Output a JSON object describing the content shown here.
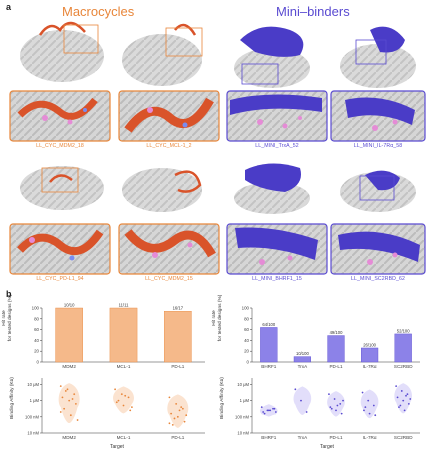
{
  "panel_a": {
    "letter": "a"
  },
  "panel_b": {
    "letter": "b"
  },
  "headers": {
    "macrocycles": "Macrocycles",
    "mini_binders": "Mini–binders"
  },
  "colors": {
    "macrocycle": "#e8863a",
    "mini_binder": "#5a4bd1",
    "helix_orange": "#d9532a",
    "helix_purple": "#4a3cc7",
    "ligand_pink": "#e58bd6"
  },
  "structures": [
    {
      "label": "LL_CYC_MDM2_18"
    },
    {
      "label": "LL_CYC_MCL-1_2"
    },
    {
      "label": "LL_MINI_TrxA_52"
    },
    {
      "label": "LL_MINI_IL-7Rα_58"
    },
    {
      "label": "LL_CYC_PD-L1_94"
    },
    {
      "label": "LL_CYC_MDM2_15"
    },
    {
      "label": "LL_MINI_BHRF1_15"
    },
    {
      "label": "LL_MINI_SC2RBD_62"
    }
  ],
  "chart_data": [
    {
      "type": "bar",
      "ylabel": "Hit rate\nfor tested designs (%)",
      "ylim": [
        0,
        100
      ],
      "yticks": [
        "0",
        "20",
        "40",
        "60",
        "80",
        "100"
      ],
      "categories": [
        "MDM2",
        "MCL-1",
        "PD-L1"
      ],
      "values": [
        100,
        100,
        94
      ],
      "data_labels": [
        "10/10",
        "11/11",
        "16/17"
      ]
    },
    {
      "type": "bar",
      "ylabel": "Hit rate\nfor tested designs (%)",
      "ylim": [
        0,
        100
      ],
      "yticks": [
        "0",
        "20",
        "40",
        "60",
        "80",
        "100"
      ],
      "categories": [
        "BHRF1",
        "TrxA",
        "PD-L1",
        "IL-7Rα",
        "SC2RBD"
      ],
      "values": [
        64,
        10,
        49,
        26,
        52
      ],
      "data_labels": [
        "64/100",
        "10/100",
        "49/100",
        "26/100",
        "52/100"
      ]
    },
    {
      "type": "scatter",
      "ylabel": "Binding Affinity (Kᴅ)",
      "xlabel": "Target",
      "yticks": [
        "10 μM",
        "1 μM",
        "100 nM",
        "10 nM"
      ],
      "categories": [
        "MDM2",
        "MCL-1",
        "PD-L1"
      ],
      "points_log10_M": [
        [
          -5.1,
          -5.3,
          -5.6,
          -5.8,
          -6.0,
          -6.2,
          -6.5,
          -6.9,
          -7.2,
          -5.4,
          -5.9,
          -6.7
        ],
        [
          -5.3,
          -5.6,
          -5.8,
          -6.1,
          -6.3,
          -6.6,
          -6.0,
          -5.7,
          -6.4
        ],
        [
          -5.8,
          -6.2,
          -6.5,
          -6.8,
          -7.0,
          -7.3,
          -7.5,
          -6.6,
          -6.9,
          -7.1,
          -6.4,
          -7.4
        ]
      ]
    },
    {
      "type": "scatter",
      "ylabel": "Binding Affinity (Kᴅ)",
      "xlabel": "Target",
      "yticks": [
        "10 μM",
        "1 μM",
        "100 nM",
        "10 nM"
      ],
      "categories": [
        "BHRF1",
        "TrxA",
        "PD-L1",
        "IL-7Rα",
        "SC2RBD"
      ],
      "points_log10_M": [
        [
          -6.4,
          -6.6,
          -6.5,
          -6.7,
          -6.6,
          -6.5,
          -6.8,
          -6.6,
          -6.7
        ],
        [
          -5.3,
          -6.0,
          -6.7
        ],
        [
          -5.6,
          -5.9,
          -6.2,
          -6.4,
          -6.6,
          -6.8,
          -6.5,
          -6.3,
          -6.0
        ],
        [
          -5.5,
          -6.0,
          -6.3,
          -6.6,
          -6.8,
          -6.9,
          -6.4
        ],
        [
          -5.1,
          -5.4,
          -5.6,
          -5.8,
          -6.0,
          -6.2,
          -6.4,
          -6.6,
          -5.9,
          -6.3,
          -5.7
        ]
      ]
    }
  ]
}
